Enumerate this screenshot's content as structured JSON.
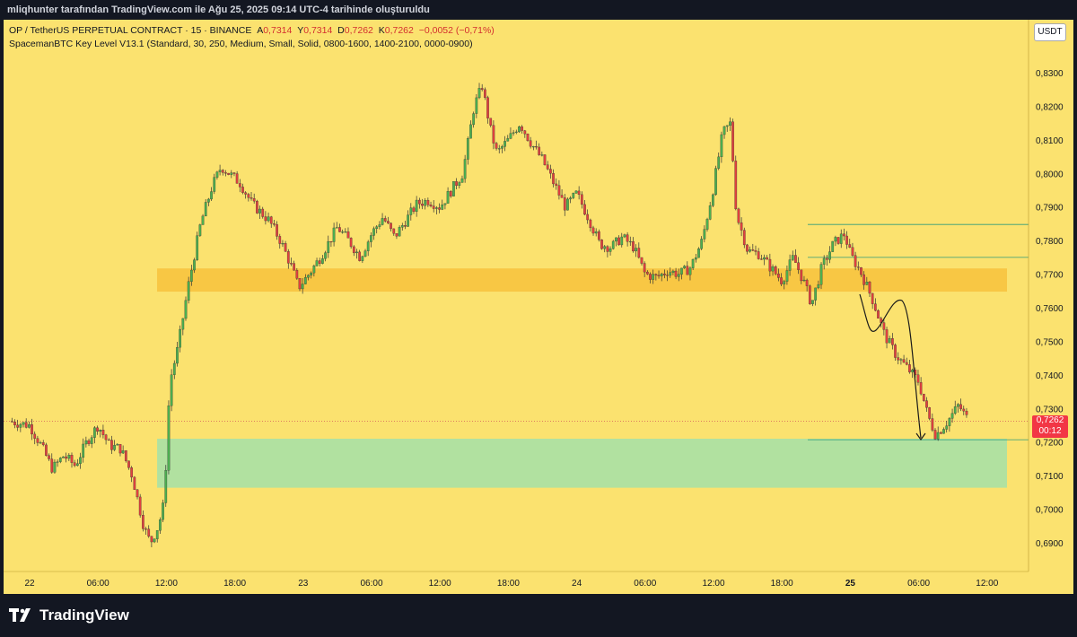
{
  "header": {
    "attribution": "mliqhunter tarafından TradingView.com ile Ağu 25, 2025 09:14 UTC-4 tarihinde oluşturuldu"
  },
  "legend": {
    "symbol_line": "OP / TetherUS PERPETUAL CONTRACT · 15 · BINANCE",
    "a_label": "A",
    "a_value": "0,7314",
    "y_label": "Y",
    "y_value": "0,7314",
    "d_label": "D",
    "d_value": "0,7262",
    "k_label": "K",
    "k_value": "0,7262",
    "change": "−0,0052 (−0,71%)",
    "indicator": "SpacemanBTC Key Level V13.1 (Standard, 30, 250, Medium, Small, Solid, 0800-1600, 1400-2100, 0000-0900)"
  },
  "currency_button": "USDT",
  "last_price": {
    "value": "0,7262",
    "countdown": "00:12"
  },
  "branding": {
    "name": "TradingView"
  },
  "colors": {
    "background": "#fbe26f",
    "up": "#26a69a",
    "down": "#ef5350",
    "zone_orange": "#f7c43f",
    "zone_green": "#a9e1a5",
    "price_tag": "#f23645"
  },
  "chart_data": {
    "type": "candlestick",
    "title": "OP / TetherUS PERPETUAL CONTRACT · 15 · BINANCE",
    "ylim": [
      0.6855,
      0.8355
    ],
    "y_ticks": [
      "0,8300",
      "0,8200",
      "0,8100",
      "0,8000",
      "0,7900",
      "0,7800",
      "0,7700",
      "0,7600",
      "0,7500",
      "0,7400",
      "0,7300",
      "0,7200",
      "0,7100",
      "0,7000",
      "0,6900"
    ],
    "y_tick_values": [
      0.83,
      0.82,
      0.81,
      0.8,
      0.79,
      0.78,
      0.77,
      0.76,
      0.75,
      0.74,
      0.73,
      0.72,
      0.71,
      0.7,
      0.69
    ],
    "x_ticks": [
      "22",
      "06:00",
      "12:00",
      "18:00",
      "23",
      "06:00",
      "12:00",
      "18:00",
      "24",
      "06:00",
      "12:00",
      "18:00",
      "25",
      "06:00",
      "12:00"
    ],
    "x_tick_hours": [
      0,
      6,
      12,
      18,
      24,
      30,
      36,
      42,
      48,
      54,
      60,
      66,
      72,
      78,
      84
    ],
    "x_range_hours": [
      -1.8,
      86.5
    ],
    "grid": false,
    "path_points": [
      [
        -1.8,
        0.7262
      ],
      [
        0,
        0.725
      ],
      [
        1,
        0.719
      ],
      [
        2,
        0.712
      ],
      [
        3,
        0.716
      ],
      [
        4,
        0.713
      ],
      [
        5,
        0.72
      ],
      [
        6,
        0.725
      ],
      [
        7,
        0.719
      ],
      [
        8,
        0.718
      ],
      [
        9,
        0.71
      ],
      [
        10,
        0.695
      ],
      [
        10.6,
        0.69
      ],
      [
        11.3,
        0.695
      ],
      [
        11.8,
        0.702
      ],
      [
        12.3,
        0.738
      ],
      [
        13,
        0.748
      ],
      [
        14,
        0.768
      ],
      [
        15,
        0.785
      ],
      [
        16,
        0.796
      ],
      [
        16.8,
        0.802
      ],
      [
        17.5,
        0.8
      ],
      [
        18.5,
        0.797
      ],
      [
        19.5,
        0.791
      ],
      [
        21,
        0.786
      ],
      [
        22,
        0.78
      ],
      [
        23,
        0.772
      ],
      [
        23.6,
        0.766
      ],
      [
        24.5,
        0.77
      ],
      [
        25.5,
        0.775
      ],
      [
        27,
        0.784
      ],
      [
        28,
        0.78
      ],
      [
        29,
        0.775
      ],
      [
        30,
        0.782
      ],
      [
        31,
        0.787
      ],
      [
        32,
        0.781
      ],
      [
        33,
        0.786
      ],
      [
        34,
        0.791
      ],
      [
        35,
        0.792
      ],
      [
        36,
        0.79
      ],
      [
        37,
        0.795
      ],
      [
        38,
        0.8
      ],
      [
        39,
        0.82
      ],
      [
        39.7,
        0.826
      ],
      [
        40.5,
        0.812
      ],
      [
        41,
        0.806
      ],
      [
        42,
        0.81
      ],
      [
        43,
        0.815
      ],
      [
        44,
        0.809
      ],
      [
        45,
        0.804
      ],
      [
        46,
        0.797
      ],
      [
        47,
        0.79
      ],
      [
        48,
        0.794
      ],
      [
        49,
        0.787
      ],
      [
        50,
        0.779
      ],
      [
        51,
        0.778
      ],
      [
        52,
        0.781
      ],
      [
        53,
        0.778
      ],
      [
        54,
        0.77
      ],
      [
        55,
        0.769
      ],
      [
        56,
        0.771
      ],
      [
        57,
        0.77
      ],
      [
        58,
        0.772
      ],
      [
        59,
        0.78
      ],
      [
        60,
        0.796
      ],
      [
        60.8,
        0.812
      ],
      [
        61.5,
        0.815
      ],
      [
        62,
        0.788
      ],
      [
        63,
        0.777
      ],
      [
        64,
        0.776
      ],
      [
        65,
        0.772
      ],
      [
        66,
        0.768
      ],
      [
        67,
        0.775
      ],
      [
        68,
        0.767
      ],
      [
        68.6,
        0.761
      ],
      [
        69.5,
        0.772
      ],
      [
        70.5,
        0.779
      ],
      [
        71.5,
        0.782
      ],
      [
        72,
        0.776
      ],
      [
        73,
        0.77
      ],
      [
        74,
        0.762
      ],
      [
        75,
        0.752
      ],
      [
        76,
        0.746
      ],
      [
        77,
        0.742
      ],
      [
        78,
        0.738
      ],
      [
        78.8,
        0.728
      ],
      [
        79.5,
        0.722
      ],
      [
        80.5,
        0.726
      ],
      [
        81.5,
        0.731
      ],
      [
        82.4,
        0.7262
      ]
    ],
    "zones": [
      {
        "name": "resistance-zone",
        "y_top": 0.7717,
        "y_bottom": 0.7648,
        "x_start_hours": 11.5,
        "color": "orange"
      },
      {
        "name": "demand-zone",
        "y_top": 0.721,
        "y_bottom": 0.7064,
        "x_start_hours": 11.5,
        "color": "green"
      }
    ],
    "key_levels": [
      0.7848,
      0.775,
      0.7207
    ],
    "last_price_value": 0.7262
  }
}
